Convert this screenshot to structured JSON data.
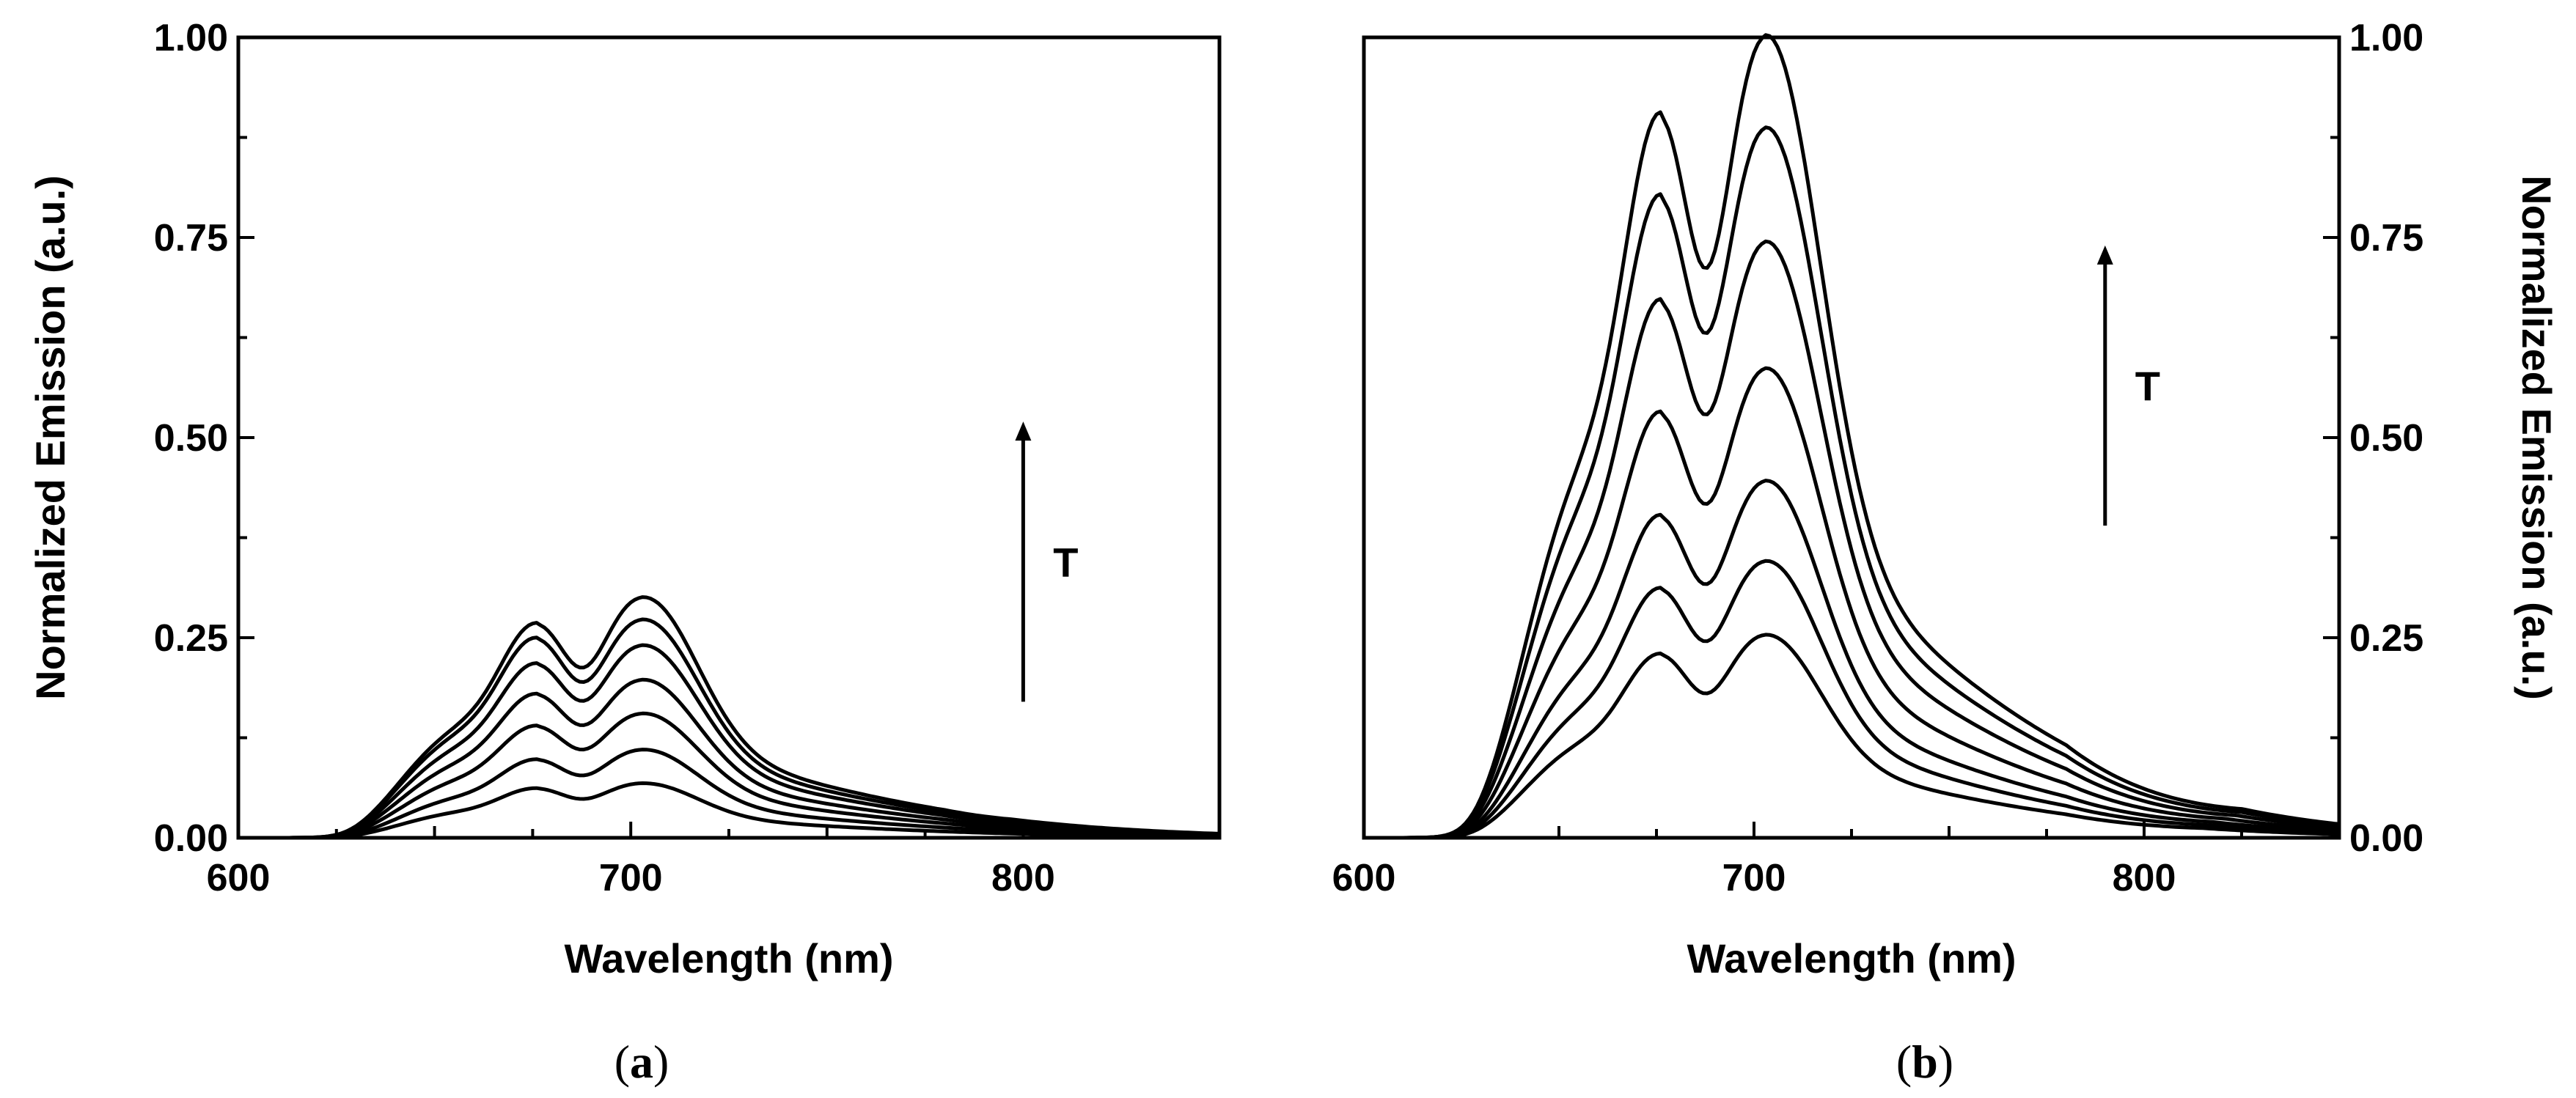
{
  "colors": {
    "line": "#000000",
    "background": "#ffffff"
  },
  "chart_data": [
    {
      "type": "line",
      "panel": "a",
      "caption": {
        "open": "(",
        "letter": "a",
        "close": ")"
      },
      "xlabel": "Wavelength (nm)",
      "ylabel": "Normalized Emission (a.u.)",
      "ylabel_side": "left",
      "xlim": [
        600,
        850
      ],
      "ylim": [
        0,
        1.0
      ],
      "xticks": [
        600,
        700,
        800
      ],
      "yticks": [
        0.0,
        0.25,
        0.5,
        0.75,
        1.0
      ],
      "xtick_labels": [
        "600",
        "700",
        "800"
      ],
      "ytick_labels": [
        "0.00",
        "0.25",
        "0.50",
        "0.75",
        "1.00"
      ],
      "annotation": {
        "text": "T",
        "arrow": "up",
        "x": 800,
        "y_from": 0.17,
        "y_to": 0.52
      },
      "peak_wavelengths_nm": [
        675,
        704
      ],
      "series": [
        {
          "name": "curve 1",
          "peak_675": 0.062,
          "peak_704": 0.068
        },
        {
          "name": "curve 2",
          "peak_675": 0.098,
          "peak_704": 0.11
        },
        {
          "name": "curve 3",
          "peak_675": 0.14,
          "peak_704": 0.155
        },
        {
          "name": "curve 4",
          "peak_675": 0.18,
          "peak_704": 0.197
        },
        {
          "name": "curve 5",
          "peak_675": 0.218,
          "peak_704": 0.24
        },
        {
          "name": "curve 6",
          "peak_675": 0.25,
          "peak_704": 0.272
        },
        {
          "name": "curve 7",
          "peak_675": 0.268,
          "peak_704": 0.3
        }
      ]
    },
    {
      "type": "line",
      "panel": "b",
      "caption": {
        "open": "(",
        "letter": "b",
        "close": ")"
      },
      "xlabel": "Wavelength (nm)",
      "ylabel": "Normalized Emission (a.u.)",
      "ylabel_side": "right",
      "xlim": [
        600,
        850
      ],
      "ylim": [
        0,
        1.0
      ],
      "xticks": [
        600,
        700,
        800
      ],
      "yticks": [
        0.0,
        0.25,
        0.5,
        0.75,
        1.0
      ],
      "xtick_labels": [
        "600",
        "700",
        "800"
      ],
      "ytick_labels": [
        "0.00",
        "0.25",
        "0.50",
        "0.75",
        "1.00"
      ],
      "annotation": {
        "text": "T",
        "arrow": "up",
        "x": 790,
        "y_from": 0.39,
        "y_to": 0.74
      },
      "peak_wavelengths_nm": [
        675,
        704
      ],
      "series": [
        {
          "name": "curve 1",
          "peak_675": 0.23,
          "peak_704": 0.253
        },
        {
          "name": "curve 2",
          "peak_675": 0.312,
          "peak_704": 0.345
        },
        {
          "name": "curve 3",
          "peak_675": 0.403,
          "peak_704": 0.445
        },
        {
          "name": "curve 4",
          "peak_675": 0.532,
          "peak_704": 0.585
        },
        {
          "name": "curve 5",
          "peak_675": 0.672,
          "peak_704": 0.743
        },
        {
          "name": "curve 6",
          "peak_675": 0.803,
          "peak_704": 0.885
        },
        {
          "name": "curve 7",
          "peak_675": 0.905,
          "peak_704": 1.0
        }
      ]
    }
  ]
}
